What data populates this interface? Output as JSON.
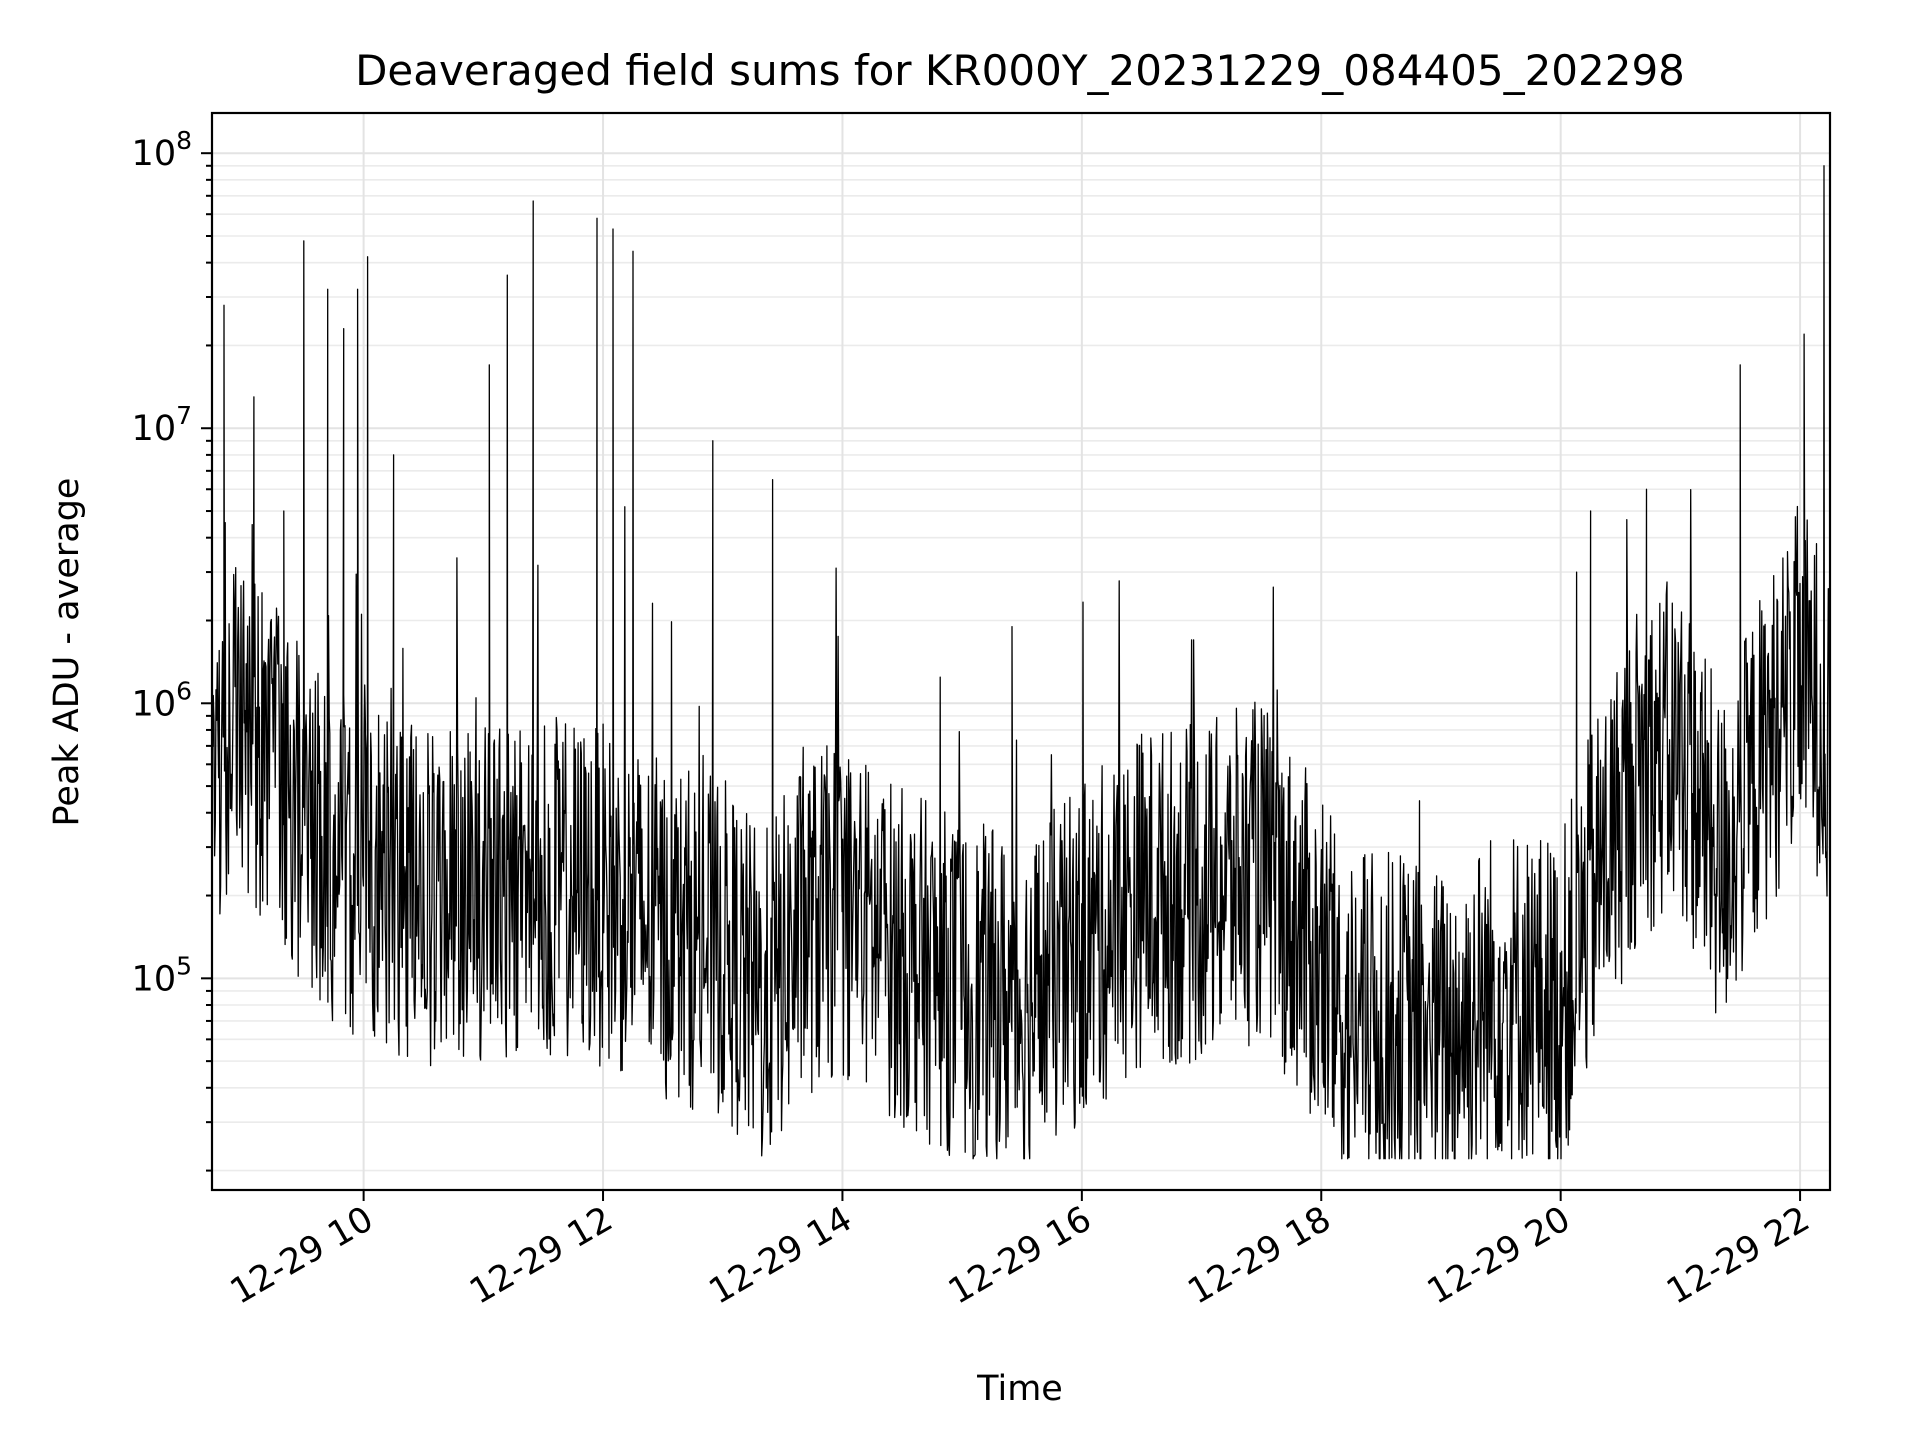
{
  "chart_data": {
    "type": "line",
    "title": "Deaveraged field sums for KR000Y_20231229_084405_202298",
    "xlabel": "Time",
    "ylabel": "Peak ADU - average",
    "xlim": [
      "2023-12-29 08:44",
      "2023-12-29 22:15"
    ],
    "ylim": [
      17000,
      140000000
    ],
    "yscale": "log",
    "grid": true,
    "x_tick_labels": [
      "12-29 10",
      "12-29 12",
      "12-29 14",
      "12-29 16",
      "12-29 18",
      "12-29 20",
      "12-29 22"
    ],
    "x_ticks": [
      "2023-12-29 10:00",
      "2023-12-29 12:00",
      "2023-12-29 14:00",
      "2023-12-29 16:00",
      "2023-12-29 18:00",
      "2023-12-29 20:00",
      "2023-12-29 22:00"
    ],
    "y_ticks": [
      {
        "value": 100000,
        "base": "10",
        "exp": "5"
      },
      {
        "value": 1000000,
        "base": "10",
        "exp": "6"
      },
      {
        "value": 10000000,
        "base": "10",
        "exp": "7"
      },
      {
        "value": 100000000,
        "base": "10",
        "exp": "8"
      }
    ],
    "series": [
      {
        "color": "#000000",
        "baseline": [
          [
            "2023-12-29 08:44",
            600000
          ],
          [
            "2023-12-29 09:00",
            900000
          ],
          [
            "2023-12-29 09:20",
            500000
          ],
          [
            "2023-12-29 09:40",
            300000
          ],
          [
            "2023-12-29 10:00",
            250000
          ],
          [
            "2023-12-29 10:30",
            200000
          ],
          [
            "2023-12-29 11:00",
            200000
          ],
          [
            "2023-12-29 11:30",
            220000
          ],
          [
            "2023-12-29 12:00",
            200000
          ],
          [
            "2023-12-29 12:30",
            150000
          ],
          [
            "2023-12-29 13:00",
            130000
          ],
          [
            "2023-12-29 13:20",
            80000
          ],
          [
            "2023-12-29 13:40",
            150000
          ],
          [
            "2023-12-29 14:00",
            180000
          ],
          [
            "2023-12-29 14:30",
            120000
          ],
          [
            "2023-12-29 15:00",
            90000
          ],
          [
            "2023-12-29 15:30",
            80000
          ],
          [
            "2023-12-29 16:00",
            120000
          ],
          [
            "2023-12-29 16:30",
            200000
          ],
          [
            "2023-12-29 17:00",
            200000
          ],
          [
            "2023-12-29 17:30",
            250000
          ],
          [
            "2023-12-29 17:50",
            150000
          ],
          [
            "2023-12-29 18:10",
            70000
          ],
          [
            "2023-12-29 18:40",
            70000
          ],
          [
            "2023-12-29 19:00",
            60000
          ],
          [
            "2023-12-29 19:30",
            90000
          ],
          [
            "2023-12-29 20:00",
            80000
          ],
          [
            "2023-12-29 20:20",
            250000
          ],
          [
            "2023-12-29 20:40",
            600000
          ],
          [
            "2023-12-29 21:00",
            700000
          ],
          [
            "2023-12-29 21:20",
            250000
          ],
          [
            "2023-12-29 21:40",
            600000
          ],
          [
            "2023-12-29 22:00",
            1300000
          ],
          [
            "2023-12-29 22:15",
            800000
          ]
        ],
        "spikes": [
          [
            "2023-12-29 08:50",
            28000000
          ],
          [
            "2023-12-29 09:05",
            13000000
          ],
          [
            "2023-12-29 09:20",
            5000000
          ],
          [
            "2023-12-29 09:30",
            48000000
          ],
          [
            "2023-12-29 09:42",
            32000000
          ],
          [
            "2023-12-29 09:50",
            23000000
          ],
          [
            "2023-12-29 09:57",
            32000000
          ],
          [
            "2023-12-29 10:02",
            42000000
          ],
          [
            "2023-12-29 10:15",
            8000000
          ],
          [
            "2023-12-29 11:03",
            17000000
          ],
          [
            "2023-12-29 11:12",
            36000000
          ],
          [
            "2023-12-29 11:25",
            67000000
          ],
          [
            "2023-12-29 11:57",
            58000000
          ],
          [
            "2023-12-29 12:05",
            53000000
          ],
          [
            "2023-12-29 12:15",
            44000000
          ],
          [
            "2023-12-29 12:55",
            9000000
          ],
          [
            "2023-12-29 13:25",
            6500000
          ],
          [
            "2023-12-29 15:25",
            1900000
          ],
          [
            "2023-12-29 16:55",
            1700000
          ],
          [
            "2023-12-29 20:08",
            3000000
          ],
          [
            "2023-12-29 20:15",
            5000000
          ],
          [
            "2023-12-29 20:43",
            6000000
          ],
          [
            "2023-12-29 21:30",
            17000000
          ],
          [
            "2023-12-29 22:02",
            22000000
          ],
          [
            "2023-12-29 22:12",
            90000000
          ]
        ]
      }
    ]
  }
}
